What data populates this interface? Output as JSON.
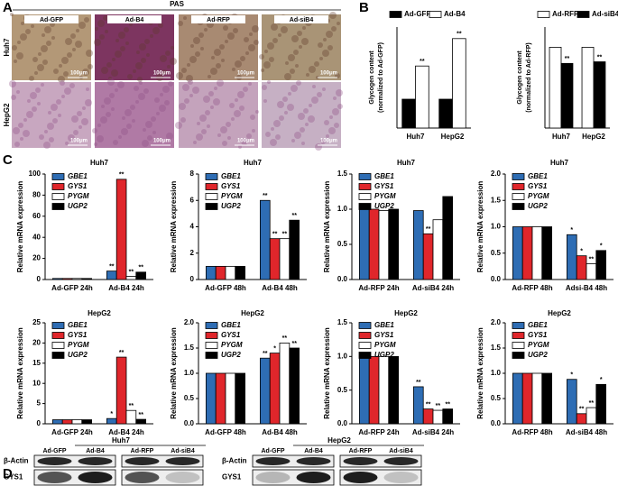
{
  "panel_labels": [
    "A",
    "B",
    "C",
    "D"
  ],
  "panel_a": {
    "header": "PAS",
    "columns": [
      "Ad-GFP",
      "Ad-B4",
      "Ad-RFP",
      "Ad-siB4"
    ],
    "rows": [
      "Huh7",
      "HepG2"
    ],
    "scale_label": "100μm"
  },
  "panel_d": {
    "groups": [
      {
        "name": "Huh7",
        "lanes": [
          "Ad-GFP",
          "Ad-B4",
          "Ad-RFP",
          "Ad-siB4"
        ]
      },
      {
        "name": "HepG2",
        "lanes": [
          "Ad-GFP",
          "Ad-B4",
          "Ad-RFP",
          "Ad-siB4"
        ]
      }
    ],
    "rows": [
      "β-Actin",
      "GYS1"
    ]
  },
  "chart_data": [
    {
      "type": "bar",
      "y_label": [
        "Glycogen content",
        "(normalized to Ad-GFP)"
      ],
      "categories": [
        "Huh7",
        "HepG2"
      ],
      "ylim": [
        0,
        3.5
      ],
      "legend": "top",
      "series": [
        {
          "name": "Ad-GFP",
          "color": "#000000",
          "values": [
            1,
            1
          ],
          "annotations": [
            null,
            null
          ]
        },
        {
          "name": "Ad-B4",
          "color": "#ffffff",
          "values": [
            2.15,
            3.1
          ],
          "annotations": [
            "**",
            "**"
          ]
        }
      ]
    },
    {
      "type": "bar",
      "y_label": [
        "Glycogen content",
        "(normalized to Ad-RFP)"
      ],
      "categories": [
        "Huh7",
        "HepG2"
      ],
      "ylim": [
        0,
        1.25
      ],
      "legend": "top",
      "series": [
        {
          "name": "Ad-RFP",
          "color": "#ffffff",
          "values": [
            1,
            1
          ],
          "annotations": [
            null,
            null
          ]
        },
        {
          "name": "Ad-siB4",
          "color": "#000000",
          "values": [
            0.8,
            0.82
          ],
          "annotations": [
            "**",
            "**"
          ]
        }
      ]
    },
    {
      "type": "bar",
      "title": "Huh7",
      "y_label": "Relative mRNA expression",
      "categories": [
        "Ad-GFP 24h",
        "Ad-B4 24h"
      ],
      "ylim": [
        0,
        100
      ],
      "yticks": [
        0,
        20,
        40,
        60,
        80,
        100
      ],
      "legend": "upper left",
      "series": [
        {
          "name": "GBE1",
          "color": "#2e6db4",
          "values": [
            1,
            8
          ],
          "annotations": [
            null,
            "**"
          ]
        },
        {
          "name": "GYS1",
          "color": "#e0262b",
          "values": [
            1,
            95
          ],
          "annotations": [
            null,
            "**"
          ]
        },
        {
          "name": "PYGM",
          "color": "#ffffff",
          "values": [
            1,
            3
          ],
          "annotations": [
            null,
            "**"
          ]
        },
        {
          "name": "UGP2",
          "color": "#000000",
          "values": [
            1,
            7
          ],
          "annotations": [
            null,
            "**"
          ]
        }
      ]
    },
    {
      "type": "bar",
      "title": "Huh7",
      "y_label": "Relative mRNA expression",
      "categories": [
        "Ad-GFP 48h",
        "Ad-B4 48h"
      ],
      "ylim": [
        0,
        8
      ],
      "yticks": [
        0,
        2,
        4,
        6,
        8
      ],
      "legend": "upper left",
      "series": [
        {
          "name": "GBE1",
          "color": "#2e6db4",
          "values": [
            1,
            6
          ],
          "annotations": [
            null,
            "**"
          ]
        },
        {
          "name": "GYS1",
          "color": "#e0262b",
          "values": [
            1,
            3.1
          ],
          "annotations": [
            null,
            "**"
          ]
        },
        {
          "name": "PYGM",
          "color": "#ffffff",
          "values": [
            1,
            3.1
          ],
          "annotations": [
            null,
            "**"
          ]
        },
        {
          "name": "UGP2",
          "color": "#000000",
          "values": [
            1,
            4.5
          ],
          "annotations": [
            null,
            "**"
          ]
        }
      ]
    },
    {
      "type": "bar",
      "title": "Huh7",
      "y_label": "Relative mRNA expression",
      "categories": [
        "Ad-RFP 24h",
        "Ad-siB4 24h"
      ],
      "ylim": [
        0,
        1.5
      ],
      "yticks": [
        {
          "value": 0,
          "label": "0.0"
        },
        0.5,
        {
          "value": 1,
          "label": "1.0"
        },
        1.5
      ],
      "legend": "upper left",
      "series": [
        {
          "name": "GBE1",
          "color": "#2e6db4",
          "values": [
            1,
            0.98
          ],
          "annotations": [
            null,
            null
          ]
        },
        {
          "name": "GYS1",
          "color": "#e0262b",
          "values": [
            1,
            0.65
          ],
          "annotations": [
            null,
            "**"
          ]
        },
        {
          "name": "PYGM",
          "color": "#ffffff",
          "values": [
            0.98,
            0.85
          ],
          "annotations": [
            null,
            null
          ]
        },
        {
          "name": "UGP2",
          "color": "#000000",
          "values": [
            1,
            1.18
          ],
          "annotations": [
            null,
            null
          ]
        }
      ]
    },
    {
      "type": "bar",
      "title": "Huh7",
      "y_label": "Relative mRNA expression",
      "categories": [
        "Ad-RFP 48h",
        "Adsi-B4 48h"
      ],
      "ylim": [
        0,
        2
      ],
      "yticks": [
        {
          "value": 0,
          "label": "0.0"
        },
        0.5,
        {
          "value": 1,
          "label": "1.0"
        },
        1.5,
        {
          "value": 2,
          "label": "2.0"
        }
      ],
      "legend": "upper left",
      "series": [
        {
          "name": "GBE1",
          "color": "#2e6db4",
          "values": [
            1,
            0.85
          ],
          "annotations": [
            null,
            "*"
          ]
        },
        {
          "name": "GYS1",
          "color": "#e0262b",
          "values": [
            1,
            0.45
          ],
          "annotations": [
            null,
            "*"
          ]
        },
        {
          "name": "PYGM",
          "color": "#ffffff",
          "values": [
            1,
            0.3
          ],
          "annotations": [
            null,
            "**"
          ]
        },
        {
          "name": "UGP2",
          "color": "#000000",
          "values": [
            1,
            0.55
          ],
          "annotations": [
            null,
            "*"
          ]
        }
      ]
    },
    {
      "type": "bar",
      "title": "HepG2",
      "y_label": "Relative mRNA expression",
      "categories": [
        "Ad-GFP 24h",
        "Ad-B4 24h"
      ],
      "ylim": [
        0,
        25
      ],
      "yticks": [
        0,
        5,
        10,
        15,
        20,
        25
      ],
      "legend": "upper left",
      "series": [
        {
          "name": "GBE1",
          "color": "#2e6db4",
          "values": [
            1,
            1.3
          ],
          "annotations": [
            null,
            "*"
          ]
        },
        {
          "name": "GYS1",
          "color": "#e0262b",
          "values": [
            1,
            16.5
          ],
          "annotations": [
            null,
            "**"
          ]
        },
        {
          "name": "PYGM",
          "color": "#ffffff",
          "values": [
            1,
            3.3
          ],
          "annotations": [
            null,
            "**"
          ]
        },
        {
          "name": "UGP2",
          "color": "#000000",
          "values": [
            1,
            1.1
          ],
          "annotations": [
            null,
            "**"
          ]
        }
      ]
    },
    {
      "type": "bar",
      "title": "HepG2",
      "y_label": "Relative mRNA expression",
      "categories": [
        "Ad-GFP 48h",
        "Ad-B4 48h"
      ],
      "ylim": [
        0,
        2
      ],
      "yticks": [
        {
          "value": 0,
          "label": "0.0"
        },
        0.5,
        {
          "value": 1,
          "label": "1.0"
        },
        1.5,
        {
          "value": 2,
          "label": "2.0"
        }
      ],
      "legend": "upper left",
      "series": [
        {
          "name": "GBE1",
          "color": "#2e6db4",
          "values": [
            1,
            1.3
          ],
          "annotations": [
            null,
            "**"
          ]
        },
        {
          "name": "GYS1",
          "color": "#e0262b",
          "values": [
            1,
            1.4
          ],
          "annotations": [
            null,
            "*"
          ]
        },
        {
          "name": "PYGM",
          "color": "#ffffff",
          "values": [
            1,
            1.6
          ],
          "annotations": [
            null,
            "**"
          ]
        },
        {
          "name": "UGP2",
          "color": "#000000",
          "values": [
            1,
            1.5
          ],
          "annotations": [
            null,
            "**"
          ]
        }
      ]
    },
    {
      "type": "bar",
      "title": "HepG2",
      "y_label": "Relative mRNA expression",
      "categories": [
        "Ad-RFP 24h",
        "Ad-siB4 24h"
      ],
      "ylim": [
        0,
        1.5
      ],
      "yticks": [
        {
          "value": 0,
          "label": "0.0"
        },
        0.5,
        {
          "value": 1,
          "label": "1.0"
        },
        1.5
      ],
      "legend": "upper left",
      "series": [
        {
          "name": "GBE1",
          "color": "#2e6db4",
          "values": [
            1,
            0.55
          ],
          "annotations": [
            null,
            "**"
          ]
        },
        {
          "name": "GYS1",
          "color": "#e0262b",
          "values": [
            1,
            0.22
          ],
          "annotations": [
            null,
            "**"
          ]
        },
        {
          "name": "PYGM",
          "color": "#ffffff",
          "values": [
            1,
            0.2
          ],
          "annotations": [
            null,
            "**"
          ]
        },
        {
          "name": "UGP2",
          "color": "#000000",
          "values": [
            1,
            0.22
          ],
          "annotations": [
            null,
            "**"
          ]
        }
      ]
    },
    {
      "type": "bar",
      "title": "HepG2",
      "y_label": "Relative mRNA expression",
      "categories": [
        "Ad-RFP 48h",
        "Ad-siB4 48h"
      ],
      "ylim": [
        0,
        2
      ],
      "yticks": [
        {
          "value": 0,
          "label": "0.0"
        },
        0.5,
        {
          "value": 1,
          "label": "1.0"
        },
        1.5,
        {
          "value": 2,
          "label": "2.0"
        }
      ],
      "legend": "upper left",
      "series": [
        {
          "name": "GBE1",
          "color": "#2e6db4",
          "values": [
            1,
            0.88
          ],
          "annotations": [
            null,
            "*"
          ]
        },
        {
          "name": "GYS1",
          "color": "#e0262b",
          "values": [
            1,
            0.2
          ],
          "annotations": [
            null,
            "**"
          ]
        },
        {
          "name": "PYGM",
          "color": "#ffffff",
          "values": [
            1,
            0.32
          ],
          "annotations": [
            null,
            "**"
          ]
        },
        {
          "name": "UGP2",
          "color": "#000000",
          "values": [
            1,
            0.78
          ],
          "annotations": [
            null,
            "*"
          ]
        }
      ]
    }
  ]
}
